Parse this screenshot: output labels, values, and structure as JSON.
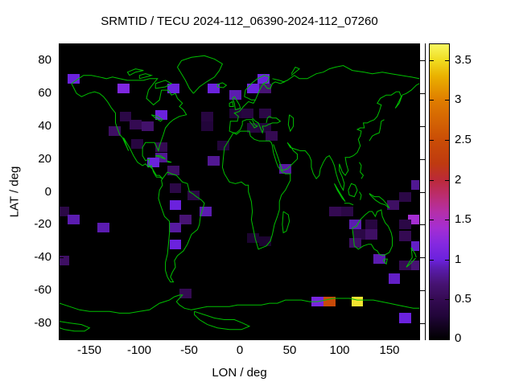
{
  "title": "SRMTID / TECU 2024-112_06390-2024-112_07260",
  "chart_data": {
    "type": "heatmap",
    "title": "SRMTID / TECU 2024-112_06390-2024-112_07260",
    "xlabel": "LON / deg",
    "ylabel": "LAT / deg",
    "xlim": [
      -180,
      180
    ],
    "ylim": [
      -90,
      90
    ],
    "x_ticks": [
      -150,
      -100,
      -50,
      0,
      50,
      100,
      150
    ],
    "y_ticks": [
      80,
      60,
      40,
      20,
      0,
      -20,
      -40,
      -60,
      -80
    ],
    "background_color": "#000000",
    "coastline_color": "#00c000",
    "cell_size_deg": {
      "lon": 12,
      "lat": 6
    },
    "colorbar": {
      "range": [
        0,
        3.7
      ],
      "tick_values": [
        0,
        0.5,
        1,
        1.5,
        2,
        2.5,
        3,
        3.5
      ],
      "palette_stops": [
        {
          "v": 0.0,
          "c": "#000000"
        },
        {
          "v": 0.3,
          "c": "#22053a"
        },
        {
          "v": 0.5,
          "c": "#340a52"
        },
        {
          "v": 0.7,
          "c": "#471373"
        },
        {
          "v": 0.9,
          "c": "#5b1cb0"
        },
        {
          "v": 1.0,
          "c": "#6b22dd"
        },
        {
          "v": 1.2,
          "c": "#8529e0"
        },
        {
          "v": 1.4,
          "c": "#a52ed2"
        },
        {
          "v": 1.6,
          "c": "#b52fa8"
        },
        {
          "v": 1.8,
          "c": "#bb2d70"
        },
        {
          "v": 2.0,
          "c": "#bb2a38"
        },
        {
          "v": 2.2,
          "c": "#bf3a10"
        },
        {
          "v": 2.5,
          "c": "#ca4d06"
        },
        {
          "v": 3.0,
          "c": "#df7d00"
        },
        {
          "v": 3.3,
          "c": "#eab100"
        },
        {
          "v": 3.5,
          "c": "#f0dc20"
        },
        {
          "v": 3.7,
          "c": "#f8f860"
        }
      ]
    },
    "cells": [
      {
        "lon": -166,
        "lat": 69,
        "tecu": 1.0
      },
      {
        "lon": -116,
        "lat": 63,
        "tecu": 1.15
      },
      {
        "lon": -66,
        "lat": 63,
        "tecu": 1.0
      },
      {
        "lon": -26,
        "lat": 63,
        "tecu": 1.0
      },
      {
        "lon": -4,
        "lat": 59,
        "tecu": 0.9
      },
      {
        "lon": 24,
        "lat": 69,
        "tecu": 1.0
      },
      {
        "lon": 14,
        "lat": 63,
        "tecu": 1.0
      },
      {
        "lon": 26,
        "lat": 63,
        "tecu": 0.7
      },
      {
        "lon": -4,
        "lat": 48,
        "tecu": 0.3
      },
      {
        "lon": 8,
        "lat": 48,
        "tecu": 0.35
      },
      {
        "lon": 26,
        "lat": 48,
        "tecu": 0.4
      },
      {
        "lon": 14,
        "lat": 39,
        "tecu": 0.35
      },
      {
        "lon": 26,
        "lat": 39,
        "tecu": 0.3
      },
      {
        "lon": 32,
        "lat": 34,
        "tecu": 0.5
      },
      {
        "lon": -32,
        "lat": 46,
        "tecu": 0.35
      },
      {
        "lon": -32,
        "lat": 40,
        "tecu": 0.3
      },
      {
        "lon": -16,
        "lat": 28,
        "tecu": 0.3
      },
      {
        "lon": -114,
        "lat": 46,
        "tecu": 0.4
      },
      {
        "lon": -78,
        "lat": 47,
        "tecu": 1.0
      },
      {
        "lon": -104,
        "lat": 41,
        "tecu": 0.5
      },
      {
        "lon": -92,
        "lat": 40,
        "tecu": 0.65
      },
      {
        "lon": -125,
        "lat": 37,
        "tecu": 0.6
      },
      {
        "lon": -102,
        "lat": 29,
        "tecu": 0.35
      },
      {
        "lon": -78,
        "lat": 27,
        "tecu": 0.5
      },
      {
        "lon": -78,
        "lat": 21,
        "tecu": 0.8
      },
      {
        "lon": -86,
        "lat": 18,
        "tecu": 1.0
      },
      {
        "lon": -66,
        "lat": 13,
        "tecu": 0.6
      },
      {
        "lon": -26,
        "lat": 19,
        "tecu": 0.8
      },
      {
        "lon": 46,
        "lat": 14,
        "tecu": 0.85
      },
      {
        "lon": 178,
        "lat": 4,
        "tecu": 0.8
      },
      {
        "lon": -64,
        "lat": 2,
        "tecu": 0.4
      },
      {
        "lon": -46,
        "lat": -2,
        "tecu": 0.4
      },
      {
        "lon": -64,
        "lat": -8,
        "tecu": 1.0
      },
      {
        "lon": -176,
        "lat": -12,
        "tecu": 0.4
      },
      {
        "lon": -166,
        "lat": -17,
        "tecu": 0.9
      },
      {
        "lon": -34,
        "lat": -12,
        "tecu": 0.9
      },
      {
        "lon": -54,
        "lat": -17,
        "tecu": 0.7
      },
      {
        "lon": -136,
        "lat": -22,
        "tecu": 0.9
      },
      {
        "lon": -64,
        "lat": -22,
        "tecu": 0.85
      },
      {
        "lon": -64,
        "lat": -32,
        "tecu": 1.0
      },
      {
        "lon": -176,
        "lat": -42,
        "tecu": 0.6
      },
      {
        "lon": -54,
        "lat": -62,
        "tecu": 0.5
      },
      {
        "lon": 14,
        "lat": -28,
        "tecu": 0.25
      },
      {
        "lon": 26,
        "lat": -30,
        "tecu": 0.25
      },
      {
        "lon": 96,
        "lat": -12,
        "tecu": 0.5
      },
      {
        "lon": 108,
        "lat": -12,
        "tecu": 0.4
      },
      {
        "lon": 154,
        "lat": -8,
        "tecu": 0.6
      },
      {
        "lon": 166,
        "lat": -3,
        "tecu": 0.4
      },
      {
        "lon": 116,
        "lat": -20,
        "tecu": 0.9
      },
      {
        "lon": 132,
        "lat": -20,
        "tecu": 0.35
      },
      {
        "lon": 120,
        "lat": -26,
        "tecu": 0.4
      },
      {
        "lon": 132,
        "lat": -26,
        "tecu": 0.6
      },
      {
        "lon": 116,
        "lat": -31,
        "tecu": 0.6
      },
      {
        "lon": 140,
        "lat": -41,
        "tecu": 0.9
      },
      {
        "lon": 155,
        "lat": -53,
        "tecu": 0.95
      },
      {
        "lon": 175,
        "lat": -17,
        "tecu": 1.4
      },
      {
        "lon": 166,
        "lat": -20,
        "tecu": 0.4
      },
      {
        "lon": 166,
        "lat": -27,
        "tecu": 0.5
      },
      {
        "lon": 178,
        "lat": -33,
        "tecu": 0.95
      },
      {
        "lon": 166,
        "lat": -45,
        "tecu": 0.5
      },
      {
        "lon": 178,
        "lat": -45,
        "tecu": 0.7
      },
      {
        "lon": 166,
        "lat": -77,
        "tecu": 1.0
      },
      {
        "lon": 78,
        "lat": -67,
        "tecu": 1.1
      },
      {
        "lon": 90,
        "lat": -67,
        "tecu": 2.45
      },
      {
        "lon": 118,
        "lat": -67,
        "tecu": 3.55
      }
    ]
  }
}
